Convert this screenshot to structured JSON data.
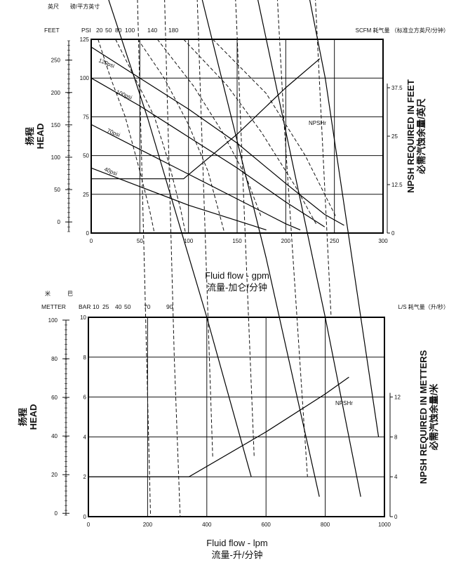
{
  "chart_data": [
    {
      "type": "line",
      "top_units": {
        "left_cn": "英尺",
        "pressure_cn": "磅/平方英寸",
        "feet": "FEET",
        "psi": "PSI",
        "air_ticks": [
          "20",
          "50",
          "80",
          "100",
          "140",
          "180"
        ],
        "air_label": "SCFM 耗气量 （标准立方英尺/分钟）"
      },
      "y_outer_ticks": [
        "250",
        "200",
        "150",
        "100",
        "50",
        "0"
      ],
      "y_outer_values": [
        250,
        200,
        150,
        100,
        50,
        0
      ],
      "y_outer_range": [
        -15,
        280
      ],
      "y_inner_ticks": [
        "125",
        "100",
        "75",
        "50",
        "25",
        "0"
      ],
      "y_inner_values": [
        125,
        100,
        75,
        50,
        25,
        0
      ],
      "y_inner_range": [
        0,
        125
      ],
      "npsh_ticks": [
        "37.5",
        "25",
        "12.5",
        "0"
      ],
      "npsh_values": [
        37.5,
        25,
        12.5,
        0
      ],
      "npsh_range": [
        0,
        50
      ],
      "ylabel_cn": "扬程",
      "ylabel_en": "HEAD",
      "right_label_en": "NPSH REQUIRED IN FEET",
      "right_label_cn": "必需汽蚀余量/英尺",
      "x_ticks": [
        "0",
        "50",
        "100",
        "150",
        "200",
        "250",
        "300"
      ],
      "x_values": [
        0,
        50,
        100,
        150,
        200,
        250,
        300
      ],
      "xlim": [
        0,
        300
      ],
      "xlabel_en": "Fluid flow - gpm",
      "xlabel_cn": "流量-加仑/分钟",
      "series": [
        {
          "name": "120psi",
          "x": [
            0,
            50,
            100,
            150,
            200,
            240,
            260
          ],
          "y": [
            120,
            100,
            80,
            58,
            32,
            12,
            5
          ]
        },
        {
          "name": "100psi",
          "x": [
            0,
            50,
            100,
            150,
            200,
            240
          ],
          "y": [
            100,
            82,
            62,
            42,
            20,
            4
          ]
        },
        {
          "name": "70psi",
          "x": [
            0,
            50,
            100,
            150,
            200,
            215
          ],
          "y": [
            70,
            54,
            38,
            22,
            6,
            2
          ]
        },
        {
          "name": "40psi",
          "x": [
            0,
            50,
            100,
            150,
            180
          ],
          "y": [
            42,
            30,
            18,
            8,
            2
          ]
        },
        {
          "name": "NPSHr",
          "x": [
            0,
            10,
            50,
            95,
            150,
            200,
            235
          ],
          "y": [
            14,
            14,
            14,
            14,
            25.5,
            37.5,
            45
          ]
        }
      ],
      "air_curves": [
        {
          "x": [
            7,
            20,
            35,
            50,
            60,
            65
          ],
          "y": [
            125,
            100,
            75,
            40,
            15,
            0
          ]
        },
        {
          "x": [
            25,
            45,
            65,
            80,
            92,
            97
          ],
          "y": [
            125,
            100,
            75,
            45,
            15,
            0
          ]
        },
        {
          "x": [
            48,
            75,
            100,
            120,
            132,
            137
          ],
          "y": [
            125,
            100,
            70,
            40,
            12,
            0
          ]
        },
        {
          "x": [
            68,
            105,
            135,
            160,
            175
          ],
          "y": [
            125,
            95,
            65,
            35,
            10
          ]
        },
        {
          "x": [
            95,
            140,
            175,
            210,
            232
          ],
          "y": [
            125,
            95,
            65,
            30,
            5
          ]
        },
        {
          "x": [
            125,
            180,
            220,
            252
          ],
          "y": [
            125,
            90,
            50,
            10
          ]
        }
      ],
      "npsh_tag": "NPSHr"
    },
    {
      "type": "line",
      "top_units": {
        "left_cn": "米",
        "pressure_cn": "巴",
        "feet": "METTER",
        "psi": "BAR",
        "air_ticks": [
          "10",
          "25",
          "40",
          "50",
          "70",
          "90"
        ],
        "air_label": "L/S 耗气量（升/秒）"
      },
      "y_outer_ticks": [
        "100",
        "80",
        "60",
        "40",
        "20",
        "0"
      ],
      "y_outer_values": [
        100,
        80,
        60,
        40,
        20,
        0
      ],
      "y_outer_range": [
        -1,
        100
      ],
      "y_inner_ticks": [
        "10",
        "8",
        "6",
        "4",
        "2",
        "0"
      ],
      "y_inner_values": [
        10,
        8,
        6,
        4,
        2,
        0
      ],
      "y_inner_range": [
        0,
        10
      ],
      "npsh_ticks": [
        "12",
        "8",
        "4",
        "0"
      ],
      "npsh_values": [
        12,
        8,
        4,
        0
      ],
      "npsh_range": [
        0,
        20
      ],
      "ylabel_cn": "扬程",
      "ylabel_en": "HEAD",
      "right_label_en": "NPSH REQUIRED IN METTERS",
      "right_label_cn": "必需汽蚀余量/米",
      "x_ticks": [
        "0",
        "200",
        "400",
        "600",
        "800",
        "1000"
      ],
      "x_values": [
        0,
        200,
        400,
        600,
        800,
        1000
      ],
      "xlim": [
        0,
        1000
      ],
      "xlabel_en": "Fluid flow - lpm",
      "xlabel_cn": "流量-升/分钟",
      "series": [
        {
          "name": "",
          "x": [
            0,
            200,
            400,
            600,
            800,
            980
          ],
          "y": [
            84,
            68,
            52,
            37,
            22,
            4
          ]
        },
        {
          "name": "",
          "x": [
            0,
            200,
            400,
            600,
            800,
            920
          ],
          "y": [
            69,
            53,
            38,
            24,
            10,
            1
          ]
        },
        {
          "name": "",
          "x": [
            0,
            200,
            400,
            600,
            780
          ],
          "y": [
            50,
            37,
            25,
            13,
            1
          ]
        },
        {
          "name": "",
          "x": [
            0,
            200,
            400,
            550
          ],
          "y": [
            29,
            20,
            10,
            2
          ]
        },
        {
          "name": "NPSHr",
          "x": [
            0,
            20,
            200,
            340,
            600,
            800,
            880
          ],
          "y": [
            4,
            4,
            4,
            4,
            8.5,
            12.3,
            14
          ]
        }
      ],
      "air_curves": [
        {
          "x": [
            25,
            70,
            110,
            150,
            190,
            210
          ],
          "y": [
            100,
            80,
            60,
            35,
            12,
            0
          ]
        },
        {
          "x": [
            70,
            140,
            200,
            250,
            290,
            310
          ],
          "y": [
            100,
            80,
            55,
            30,
            8,
            0
          ]
        },
        {
          "x": [
            140,
            230,
            310,
            370,
            420
          ],
          "y": [
            100,
            75,
            50,
            25,
            3
          ]
        },
        {
          "x": [
            230,
            330,
            420,
            500,
            560
          ],
          "y": [
            100,
            75,
            50,
            25,
            3
          ]
        },
        {
          "x": [
            350,
            460,
            570,
            660,
            740
          ],
          "y": [
            100,
            72,
            45,
            20,
            2
          ]
        },
        {
          "x": [
            460,
            600,
            720,
            820
          ],
          "y": [
            100,
            70,
            40,
            10
          ]
        }
      ],
      "npsh_tag": "NPSHr"
    }
  ]
}
